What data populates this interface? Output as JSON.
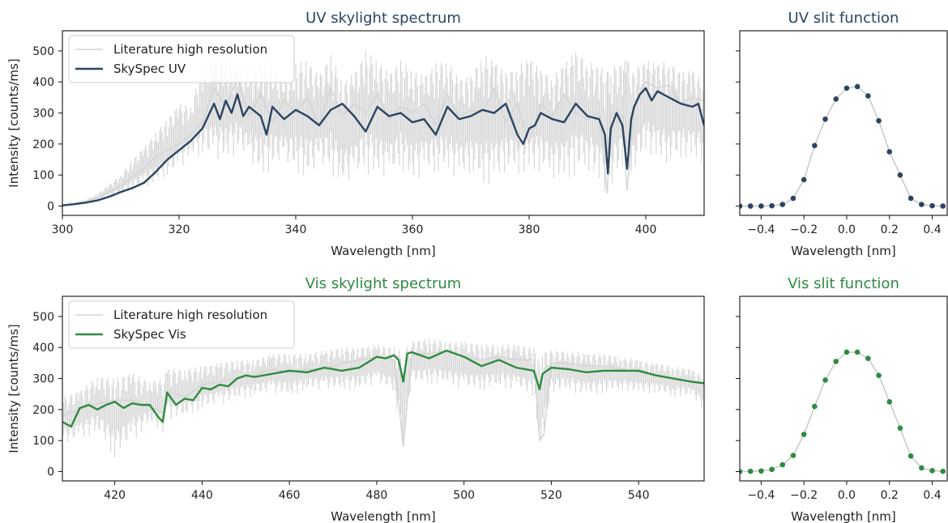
{
  "colors": {
    "uv": "#2b4462",
    "vis": "#2e8b40",
    "literature": "#d3d3d3",
    "slit_connector": "#c8c8c8"
  },
  "chart_data": [
    {
      "id": "uv_spectrum",
      "type": "line",
      "title": "UV skylight spectrum",
      "xlabel": "Wavelength [nm]",
      "ylabel": "Intensity [counts/ms]",
      "xlim": [
        300,
        410
      ],
      "ylim": [
        -30,
        565
      ],
      "xticks": [
        300,
        320,
        340,
        360,
        380,
        400
      ],
      "yticks": [
        0,
        100,
        200,
        300,
        400,
        500
      ],
      "legend": "upper-left",
      "series": [
        {
          "name": "Literature high resolution",
          "kind": "literature",
          "x": [
            300,
            302,
            304,
            306,
            308,
            310,
            312,
            314,
            316,
            318,
            320,
            322,
            324,
            326,
            328,
            330,
            332,
            334,
            336,
            338,
            340,
            342,
            344,
            346,
            348,
            350,
            352,
            354,
            356,
            358,
            360,
            362,
            364,
            366,
            368,
            370,
            372,
            374,
            376,
            378,
            380,
            382,
            384,
            386,
            388,
            390,
            392,
            393.4,
            394,
            396,
            396.8,
            398,
            400,
            402,
            404,
            406,
            408,
            410
          ],
          "y": [
            3,
            8,
            14,
            25,
            45,
            65,
            95,
            120,
            160,
            180,
            200,
            230,
            270,
            380,
            320,
            410,
            290,
            360,
            270,
            340,
            300,
            350,
            260,
            380,
            290,
            330,
            300,
            360,
            280,
            320,
            300,
            330,
            260,
            360,
            290,
            310,
            300,
            380,
            270,
            330,
            200,
            330,
            290,
            360,
            300,
            280,
            300,
            40,
            300,
            290,
            50,
            310,
            400,
            380,
            390,
            330,
            350,
            340
          ],
          "y_max": [
            4,
            10,
            22,
            40,
            70,
            100,
            150,
            190,
            240,
            280,
            330,
            320,
            450,
            480,
            470,
            460,
            420,
            470,
            460,
            400,
            460,
            470,
            420,
            490,
            400,
            430,
            500,
            470,
            430,
            470,
            440,
            420,
            460,
            470,
            410,
            420,
            490,
            470,
            430,
            450,
            480,
            440,
            420,
            460,
            500,
            470,
            450,
            440,
            450,
            460,
            480,
            440,
            470,
            460,
            470,
            430,
            440,
            400
          ],
          "y_min": [
            1,
            5,
            8,
            15,
            25,
            35,
            45,
            60,
            70,
            90,
            110,
            160,
            150,
            140,
            140,
            170,
            130,
            90,
            110,
            130,
            100,
            80,
            110,
            100,
            60,
            70,
            100,
            90,
            80,
            110,
            70,
            100,
            90,
            110,
            80,
            100,
            60,
            60,
            110,
            100,
            90,
            110,
            90,
            70,
            90,
            110,
            60,
            30,
            50,
            110,
            40,
            100,
            170,
            140,
            130,
            150,
            140,
            140
          ]
        },
        {
          "name": "SkySpec UV",
          "kind": "instrument",
          "x": [
            300,
            302,
            304,
            306,
            308,
            310,
            312,
            314,
            316,
            318,
            320,
            322,
            324,
            325,
            326,
            327,
            328,
            329,
            330,
            331,
            332,
            334,
            335,
            336,
            338,
            340,
            342,
            344,
            346,
            348,
            350,
            352,
            354,
            356,
            358,
            360,
            362,
            364,
            366,
            368,
            370,
            372,
            374,
            376,
            378,
            379,
            380,
            381,
            382,
            384,
            386,
            388,
            390,
            392,
            393,
            393.5,
            394,
            395,
            396,
            396.8,
            397.5,
            398,
            399,
            400,
            401,
            402,
            404,
            406,
            408,
            409,
            410
          ],
          "y": [
            2,
            6,
            11,
            18,
            30,
            45,
            58,
            75,
            110,
            150,
            180,
            210,
            250,
            290,
            330,
            280,
            340,
            300,
            360,
            290,
            320,
            290,
            230,
            320,
            280,
            310,
            290,
            260,
            310,
            330,
            290,
            240,
            320,
            290,
            300,
            270,
            280,
            230,
            320,
            280,
            290,
            310,
            300,
            330,
            230,
            200,
            250,
            260,
            300,
            280,
            270,
            330,
            290,
            280,
            230,
            105,
            250,
            300,
            260,
            120,
            280,
            320,
            360,
            380,
            340,
            370,
            350,
            330,
            320,
            330,
            260
          ]
        }
      ]
    },
    {
      "id": "uv_slit",
      "type": "scatter",
      "title": "UV slit function",
      "xlabel": "Wavelength [nm]",
      "xlim": [
        -0.5,
        0.47
      ],
      "ylim": [
        -30,
        565
      ],
      "xticks": [
        -0.4,
        -0.2,
        0.0,
        0.2,
        0.4
      ],
      "xtick_labels": [
        "−0.4",
        "−0.2",
        "0.0",
        "0.2",
        "0.4"
      ],
      "x": [
        -0.5,
        -0.45,
        -0.4,
        -0.35,
        -0.3,
        -0.25,
        -0.2,
        -0.15,
        -0.1,
        -0.05,
        0.0,
        0.05,
        0.1,
        0.15,
        0.2,
        0.25,
        0.3,
        0.35,
        0.4,
        0.45
      ],
      "y": [
        0,
        0,
        0,
        1,
        5,
        25,
        85,
        195,
        280,
        345,
        380,
        385,
        355,
        275,
        175,
        100,
        25,
        5,
        1,
        0
      ]
    },
    {
      "id": "vis_spectrum",
      "type": "line",
      "title": "Vis skylight spectrum",
      "xlabel": "Wavelength [nm]",
      "ylabel": "Intensity [counts/ms]",
      "xlim": [
        408,
        555
      ],
      "ylim": [
        -30,
        565
      ],
      "xticks": [
        420,
        440,
        460,
        480,
        500,
        520,
        540
      ],
      "yticks": [
        0,
        100,
        200,
        300,
        400,
        500
      ],
      "legend": "upper-left",
      "series": [
        {
          "name": "Literature high resolution",
          "kind": "literature",
          "x": [
            408,
            412,
            416,
            420,
            424,
            428,
            431,
            432,
            436,
            440,
            444,
            448,
            452,
            456,
            460,
            464,
            468,
            472,
            476,
            480,
            484,
            486.1,
            488,
            492,
            496,
            500,
            504,
            508,
            512,
            516,
            517.3,
            518.3,
            520,
            524,
            528,
            532,
            536,
            540,
            544,
            548,
            552,
            555
          ],
          "y": [
            180,
            200,
            220,
            230,
            230,
            210,
            190,
            260,
            240,
            280,
            290,
            300,
            310,
            330,
            320,
            330,
            330,
            350,
            360,
            370,
            360,
            80,
            380,
            380,
            390,
            370,
            360,
            370,
            360,
            360,
            100,
            120,
            350,
            350,
            340,
            340,
            330,
            320,
            310,
            300,
            290,
            280
          ],
          "y_max": [
            240,
            260,
            310,
            300,
            320,
            290,
            300,
            330,
            330,
            340,
            350,
            360,
            360,
            380,
            380,
            380,
            390,
            400,
            400,
            410,
            400,
            390,
            420,
            430,
            420,
            420,
            410,
            410,
            410,
            400,
            400,
            390,
            390,
            390,
            380,
            380,
            370,
            360,
            350,
            340,
            330,
            310
          ],
          "y_min": [
            80,
            100,
            120,
            40,
            90,
            150,
            120,
            170,
            170,
            200,
            210,
            230,
            240,
            250,
            240,
            260,
            260,
            260,
            260,
            280,
            250,
            60,
            280,
            280,
            280,
            260,
            260,
            270,
            260,
            240,
            80,
            90,
            250,
            260,
            240,
            250,
            260,
            250,
            250,
            240,
            240,
            200
          ]
        },
        {
          "name": "SkySpec Vis",
          "kind": "instrument",
          "x": [
            408,
            410,
            412,
            414,
            416,
            418,
            420,
            422,
            424,
            426,
            428,
            430,
            431,
            432,
            434,
            436,
            438,
            440,
            442,
            444,
            446,
            448,
            450,
            452,
            456,
            460,
            464,
            468,
            472,
            476,
            480,
            482,
            484,
            485,
            486.1,
            487,
            488,
            492,
            496,
            500,
            504,
            508,
            512,
            516,
            517.3,
            518,
            520,
            524,
            528,
            532,
            536,
            540,
            544,
            548,
            552,
            555
          ],
          "y": [
            160,
            145,
            205,
            215,
            200,
            215,
            225,
            205,
            220,
            215,
            215,
            175,
            160,
            255,
            215,
            235,
            230,
            270,
            265,
            280,
            275,
            300,
            310,
            305,
            315,
            325,
            320,
            335,
            325,
            335,
            370,
            365,
            375,
            360,
            290,
            380,
            385,
            365,
            390,
            370,
            340,
            360,
            335,
            325,
            265,
            315,
            335,
            330,
            320,
            325,
            325,
            325,
            310,
            300,
            290,
            285
          ]
        }
      ]
    },
    {
      "id": "vis_slit",
      "type": "scatter",
      "title": "Vis slit function",
      "xlabel": "Wavelength [nm]",
      "xlim": [
        -0.5,
        0.47
      ],
      "ylim": [
        -30,
        565
      ],
      "xticks": [
        -0.4,
        -0.2,
        0.0,
        0.2,
        0.4
      ],
      "xtick_labels": [
        "−0.4",
        "−0.2",
        "0.0",
        "0.2",
        "0.4"
      ],
      "x": [
        -0.5,
        -0.45,
        -0.4,
        -0.35,
        -0.3,
        -0.25,
        -0.2,
        -0.15,
        -0.1,
        -0.05,
        0.0,
        0.05,
        0.1,
        0.15,
        0.2,
        0.25,
        0.3,
        0.35,
        0.4,
        0.45
      ],
      "y": [
        0,
        1,
        2,
        7,
        22,
        52,
        120,
        210,
        295,
        355,
        385,
        385,
        365,
        310,
        225,
        140,
        50,
        12,
        3,
        1
      ]
    }
  ]
}
